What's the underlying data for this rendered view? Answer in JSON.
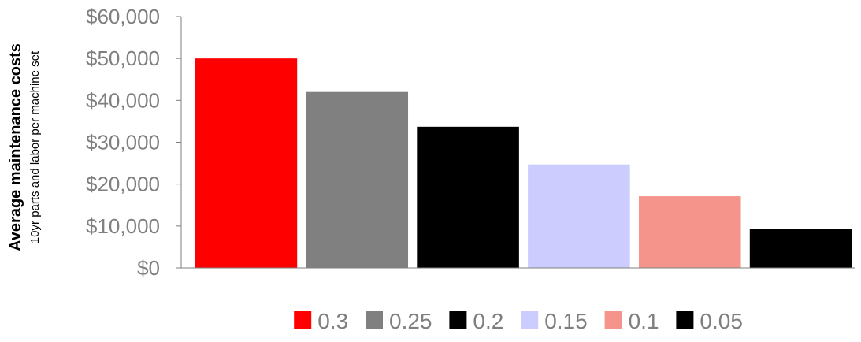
{
  "chart_data": {
    "type": "bar",
    "title": "",
    "ylabel": "Average maintenance costs",
    "ylabel_sub": "10yr parts and labor per machine set",
    "xlabel": "",
    "ylim": [
      0,
      60000
    ],
    "yticks": [
      0,
      10000,
      20000,
      30000,
      40000,
      50000,
      60000
    ],
    "ytick_labels": [
      "$0",
      "$10,000",
      "$20,000",
      "$30,000",
      "$40,000",
      "$50,000",
      "$60,000"
    ],
    "grid": false,
    "legend_position": "bottom",
    "series": [
      {
        "name": "0.3",
        "value": 50000,
        "color": "#ff0000"
      },
      {
        "name": "0.25",
        "value": 42000,
        "color": "#808080"
      },
      {
        "name": "0.2",
        "value": 33700,
        "color": "#000000"
      },
      {
        "name": "0.15",
        "value": 24700,
        "color": "#ccccff"
      },
      {
        "name": "0.1",
        "value": 17100,
        "color": "#f4948a"
      },
      {
        "name": "0.05",
        "value": 9300,
        "color": "#000000"
      }
    ]
  }
}
